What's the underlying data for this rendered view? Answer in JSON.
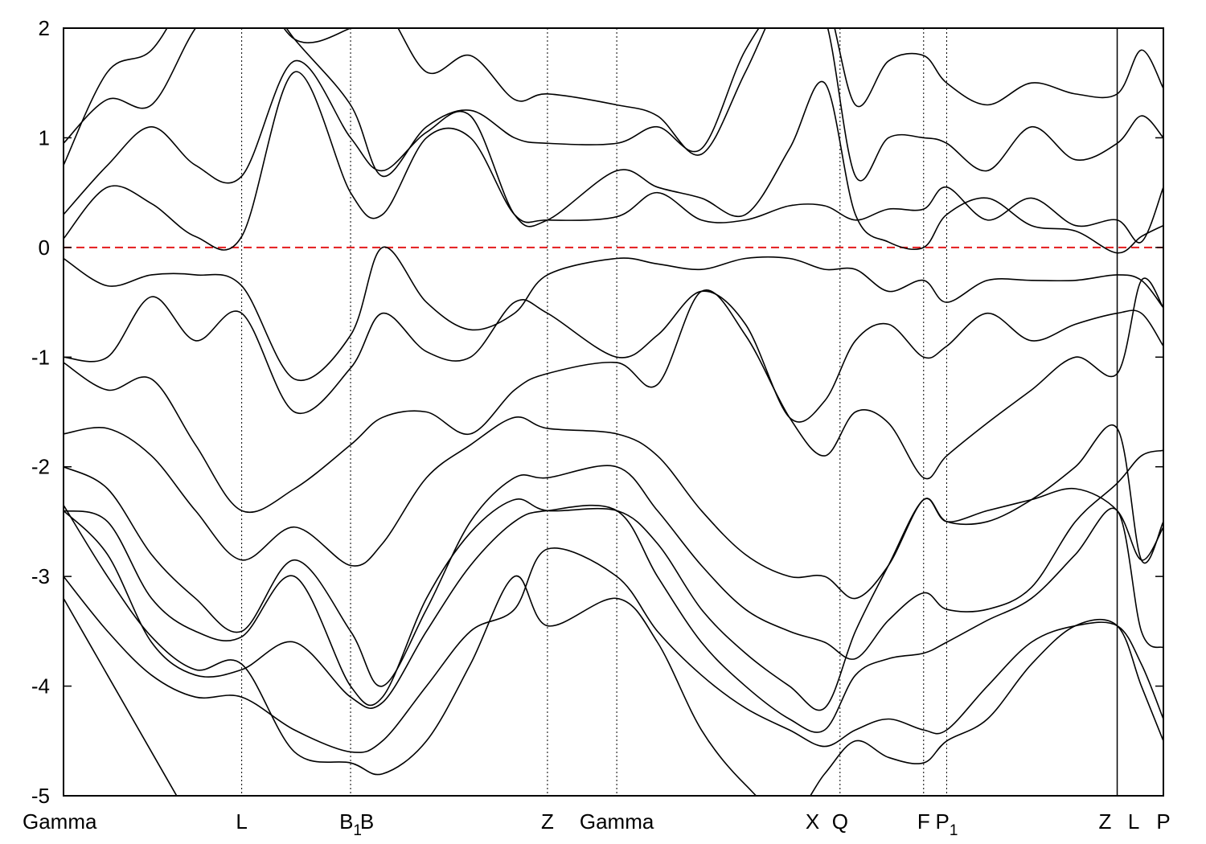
{
  "chart_data": {
    "type": "line",
    "title": "",
    "xlabel": "",
    "ylabel": "",
    "ylim": [
      -5,
      2
    ],
    "xlim": [
      0,
      1
    ],
    "yticks": [
      2,
      1,
      0,
      -1,
      -2,
      -3,
      -4,
      -5
    ],
    "ytick_labels": [
      "2",
      "1",
      "0",
      "-1",
      "-2",
      "-3",
      "-4",
      "-5"
    ],
    "kpoints": [
      {
        "label": "Gamma",
        "sub": "",
        "k": 0.0,
        "line": false
      },
      {
        "label": "L",
        "sub": "",
        "k": 0.162,
        "line": true
      },
      {
        "label": "B",
        "sub": "1",
        "k": 0.261,
        "line": true
      },
      {
        "label": "B",
        "sub": "",
        "k": 0.276,
        "line": false
      },
      {
        "label": "Z",
        "sub": "",
        "k": 0.44,
        "line": true
      },
      {
        "label": "Gamma",
        "sub": "",
        "k": 0.503,
        "line": true
      },
      {
        "label": "X",
        "sub": "",
        "k": 0.681,
        "line": false
      },
      {
        "label": "Q",
        "sub": "",
        "k": 0.706,
        "line": true
      },
      {
        "label": "F",
        "sub": "",
        "k": 0.782,
        "line": true
      },
      {
        "label": "P",
        "sub": "1",
        "k": 0.803,
        "line": true
      },
      {
        "label": "Z",
        "sub": "",
        "k": 0.947,
        "line": false
      },
      {
        "label": "L",
        "sub": "",
        "k": 0.973,
        "line": false
      },
      {
        "label": "P",
        "sub": "",
        "k": 1.0,
        "line": false
      }
    ],
    "solid_divider_k": 0.958,
    "fermi_level": 0,
    "fermi_color": "#e41a1c",
    "band_color": "#000000",
    "k_grid": [
      0,
      0.04,
      0.08,
      0.12,
      0.162,
      0.21,
      0.261,
      0.29,
      0.33,
      0.37,
      0.41,
      0.44,
      0.503,
      0.54,
      0.58,
      0.62,
      0.66,
      0.692,
      0.72,
      0.75,
      0.782,
      0.803,
      0.84,
      0.88,
      0.92,
      0.958,
      0.98,
      1.0
    ],
    "bands": [
      [
        -3.2,
        -3.9,
        -4.6,
        -5.3,
        null,
        null,
        null,
        null,
        null,
        null,
        null,
        null,
        null,
        null,
        null,
        null,
        null,
        null,
        null,
        null,
        null,
        null,
        null,
        null,
        null,
        null,
        null,
        null
      ],
      [
        -2.35,
        -3.0,
        -3.55,
        -3.85,
        -3.8,
        -4.6,
        -4.7,
        -4.8,
        -4.5,
        -3.8,
        -3.0,
        -3.45,
        -3.2,
        -3.6,
        -4.4,
        -4.9,
        -5.2,
        -4.8,
        -4.5,
        -4.65,
        -4.7,
        -4.5,
        -4.3,
        -3.8,
        -3.45,
        -3.45,
        -4.0,
        -4.5
      ],
      [
        -3.0,
        -3.5,
        -3.9,
        -4.1,
        -4.1,
        -4.4,
        -4.6,
        -4.5,
        -4.0,
        -3.5,
        -3.3,
        -2.75,
        -3.0,
        -3.5,
        -3.9,
        -4.2,
        -4.4,
        -4.55,
        -4.4,
        -4.3,
        -4.4,
        -4.4,
        -4.0,
        -3.6,
        -3.45,
        -3.45,
        -3.8,
        -4.3
      ],
      [
        -2.4,
        -2.8,
        -3.6,
        -3.9,
        -3.85,
        -3.6,
        -4.1,
        -4.15,
        -3.5,
        -2.9,
        -2.5,
        -2.4,
        -2.4,
        -3.0,
        -3.6,
        -4.0,
        -4.3,
        -4.4,
        -3.9,
        -3.75,
        -3.7,
        -3.6,
        -3.4,
        -3.2,
        -2.8,
        -2.4,
        -3.5,
        -3.65
      ],
      [
        -2.4,
        -2.5,
        -3.2,
        -3.5,
        -3.55,
        -3.0,
        -4.0,
        -4.1,
        -3.2,
        -2.6,
        -2.3,
        -2.4,
        -2.4,
        -2.7,
        -3.3,
        -3.7,
        -4.0,
        -4.2,
        -3.5,
        -2.9,
        -2.3,
        -2.5,
        -2.4,
        -2.3,
        -2.2,
        -2.4,
        -2.85,
        -2.55
      ],
      [
        -2.0,
        -2.2,
        -2.8,
        -3.2,
        -3.5,
        -2.85,
        -3.5,
        -4.0,
        -3.3,
        -2.5,
        -2.1,
        -2.1,
        -2.0,
        -2.4,
        -2.9,
        -3.3,
        -3.5,
        -3.6,
        -3.75,
        -3.4,
        -3.15,
        -3.3,
        -3.3,
        -3.1,
        -2.5,
        -2.15,
        -1.9,
        -1.85
      ],
      [
        -1.7,
        -1.65,
        -1.9,
        -2.4,
        -2.85,
        -2.55,
        -2.9,
        -2.7,
        -2.1,
        -1.8,
        -1.55,
        -1.65,
        -1.7,
        -1.9,
        -2.4,
        -2.8,
        -3.0,
        -3.0,
        -3.2,
        -2.9,
        -2.3,
        -2.5,
        -2.5,
        -2.3,
        -2.0,
        -1.65,
        -2.85,
        -2.5
      ],
      [
        -1.05,
        -1.3,
        -1.2,
        -1.8,
        -2.4,
        -2.2,
        -1.8,
        -1.55,
        -1.5,
        -1.7,
        -1.3,
        -1.15,
        -1.05,
        -1.25,
        -0.4,
        -0.8,
        -1.55,
        -1.9,
        -1.5,
        -1.6,
        -2.1,
        -1.9,
        -1.6,
        -1.3,
        -1.0,
        -1.15,
        -0.3,
        -0.55
      ],
      [
        -1.0,
        -1.0,
        -0.45,
        -0.85,
        -0.6,
        -1.5,
        -1.1,
        -0.6,
        -0.95,
        -1.0,
        -0.5,
        -0.6,
        -1.0,
        -0.8,
        -0.4,
        -0.7,
        -1.55,
        -1.4,
        -0.85,
        -0.7,
        -1.0,
        -0.9,
        -0.6,
        -0.85,
        -0.7,
        -0.6,
        -0.6,
        -0.9
      ],
      [
        -0.1,
        -0.35,
        -0.25,
        -0.25,
        -0.35,
        -1.2,
        -0.8,
        0.0,
        -0.5,
        -0.75,
        -0.6,
        -0.25,
        -0.1,
        -0.15,
        -0.2,
        -0.1,
        -0.1,
        -0.2,
        -0.2,
        -0.4,
        -0.3,
        -0.5,
        -0.3,
        -0.3,
        -0.3,
        -0.25,
        -0.3,
        -0.55
      ],
      [
        0.08,
        0.55,
        0.4,
        0.1,
        0.1,
        1.6,
        0.5,
        0.3,
        1.0,
        1.0,
        0.3,
        0.25,
        0.28,
        0.5,
        0.25,
        0.25,
        0.38,
        0.38,
        0.25,
        0.35,
        0.35,
        0.55,
        0.25,
        0.45,
        0.2,
        0.25,
        0.05,
        0.55
      ],
      [
        0.3,
        0.75,
        1.1,
        0.75,
        0.65,
        1.7,
        1.0,
        0.7,
        1.05,
        1.2,
        0.3,
        0.25,
        0.7,
        0.55,
        0.45,
        0.3,
        0.9,
        1.5,
        0.3,
        0.05,
        0.0,
        0.3,
        0.45,
        0.2,
        0.15,
        -0.05,
        0.1,
        0.2
      ],
      [
        0.95,
        1.35,
        1.3,
        2.0,
        2.5,
        1.9,
        1.3,
        0.65,
        1.1,
        1.25,
        1.0,
        0.95,
        0.95,
        1.1,
        0.9,
        1.8,
        2.3,
        2.1,
        0.65,
        1.0,
        1.0,
        0.95,
        0.7,
        1.1,
        0.8,
        0.95,
        1.2,
        1.0
      ],
      [
        0.75,
        1.6,
        1.8,
        2.4,
        2.6,
        1.9,
        2.0,
        2.2,
        1.6,
        1.75,
        1.35,
        1.4,
        1.3,
        1.2,
        0.85,
        1.6,
        2.4,
        2.3,
        1.3,
        1.7,
        1.75,
        1.5,
        1.3,
        1.5,
        1.4,
        1.4,
        1.8,
        1.45
      ]
    ]
  }
}
